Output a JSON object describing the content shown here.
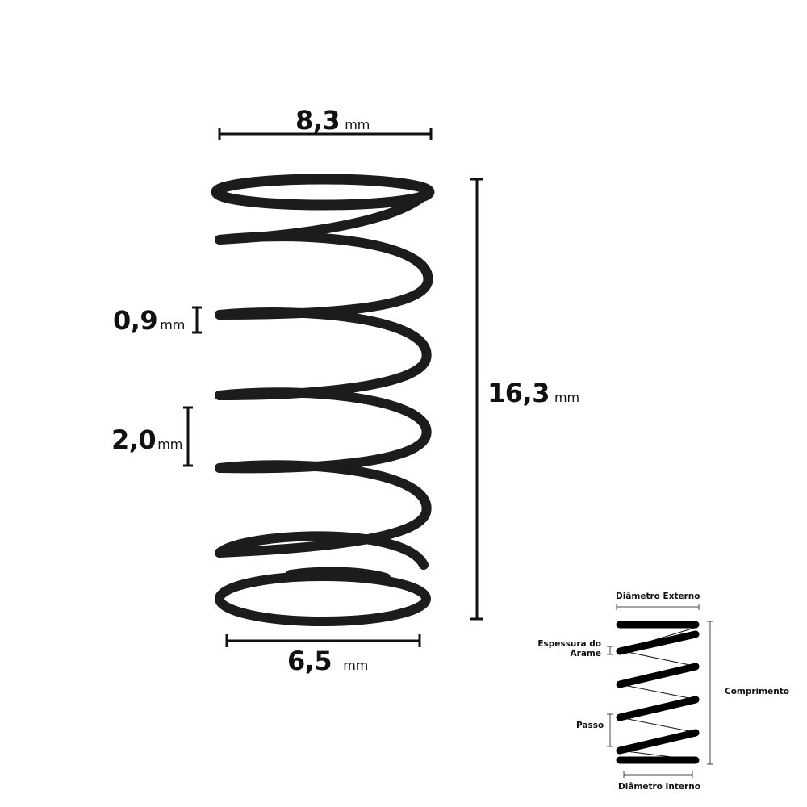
{
  "dimensions": {
    "outer_diameter": {
      "value": "8,3",
      "unit": "mm"
    },
    "length": {
      "value": "16,3",
      "unit": "mm"
    },
    "wire_thickness": {
      "value": "0,9",
      "unit": "mm"
    },
    "pitch": {
      "value": "2,0",
      "unit": "mm"
    },
    "inner_diameter": {
      "value": "6,5",
      "unit": "mm"
    }
  },
  "legend": {
    "outer_diameter": "Diâmetro Externo",
    "wire_thickness_line1": "Espessura do",
    "wire_thickness_line2": "Arame",
    "length": "Comprimento",
    "pitch": "Passo",
    "inner_diameter": "Diâmetro Interno"
  },
  "colors": {
    "spring": "#1c1c1c",
    "lines": "#111111"
  }
}
